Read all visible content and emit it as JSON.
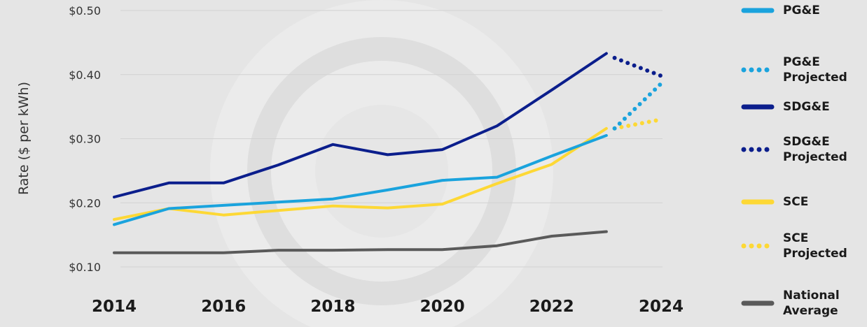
{
  "chart_data": {
    "type": "line",
    "ylabel": "Rate ($ per kWh)",
    "xlim": [
      2014,
      2024
    ],
    "ylim": [
      0.1,
      0.5
    ],
    "y_ticks": [
      "$0.10",
      "$0.20",
      "$0.30",
      "$0.40",
      "$0.50"
    ],
    "x_ticks": [
      "2014",
      "2016",
      "2018",
      "2020",
      "2022",
      "2024"
    ],
    "grid": true,
    "legend_position": "right",
    "series": [
      {
        "name": "PG&E",
        "color": "#1aa3dd",
        "style": "solid",
        "x": [
          2014,
          2015,
          2016,
          2017,
          2018,
          2019,
          2020,
          2021,
          2022,
          2023
        ],
        "y": [
          0.166,
          0.191,
          0.196,
          0.201,
          0.206,
          0.22,
          0.235,
          0.24,
          0.273,
          0.305
        ]
      },
      {
        "name": "PG&E Projected",
        "color": "#1aa3dd",
        "style": "dotted",
        "x": [
          2023.15,
          2024
        ],
        "y": [
          0.316,
          0.386
        ]
      },
      {
        "name": "SDG&E",
        "color": "#0b1e8c",
        "style": "solid",
        "x": [
          2014,
          2015,
          2016,
          2017,
          2018,
          2019,
          2020,
          2021,
          2022,
          2023
        ],
        "y": [
          0.209,
          0.231,
          0.231,
          0.259,
          0.291,
          0.275,
          0.283,
          0.32,
          0.376,
          0.433
        ]
      },
      {
        "name": "SDG&E Projected",
        "color": "#0b1e8c",
        "style": "dotted",
        "x": [
          2023.15,
          2024
        ],
        "y": [
          0.426,
          0.398
        ]
      },
      {
        "name": "SCE",
        "color": "#fdd835",
        "style": "solid",
        "x": [
          2014,
          2015,
          2016,
          2017,
          2018,
          2019,
          2020,
          2021,
          2022,
          2023
        ],
        "y": [
          0.174,
          0.191,
          0.181,
          0.188,
          0.195,
          0.192,
          0.198,
          0.23,
          0.26,
          0.316
        ]
      },
      {
        "name": "SCE Projected",
        "color": "#fdd835",
        "style": "dotted",
        "x": [
          2023.15,
          2024
        ],
        "y": [
          0.316,
          0.33
        ]
      },
      {
        "name": "National Average",
        "color": "#5a5a5a",
        "style": "solid",
        "x": [
          2014,
          2015,
          2016,
          2017,
          2018,
          2019,
          2020,
          2021,
          2022,
          2023
        ],
        "y": [
          0.122,
          0.122,
          0.122,
          0.126,
          0.126,
          0.127,
          0.127,
          0.133,
          0.148,
          0.155
        ]
      }
    ]
  },
  "legend": [
    {
      "label": "PG&E",
      "color": "#1aa3dd",
      "style": "solid"
    },
    {
      "label": "PG&E Projected",
      "color": "#1aa3dd",
      "style": "dotted"
    },
    {
      "label": "SDG&E",
      "color": "#0b1e8c",
      "style": "solid"
    },
    {
      "label": "SDG&E Projected",
      "color": "#0b1e8c",
      "style": "dotted"
    },
    {
      "label": "SCE",
      "color": "#fdd835",
      "style": "solid"
    },
    {
      "label": "SCE Projected",
      "color": "#fdd835",
      "style": "dotted"
    },
    {
      "label": "National Average",
      "color": "#5a5a5a",
      "style": "solid"
    }
  ]
}
